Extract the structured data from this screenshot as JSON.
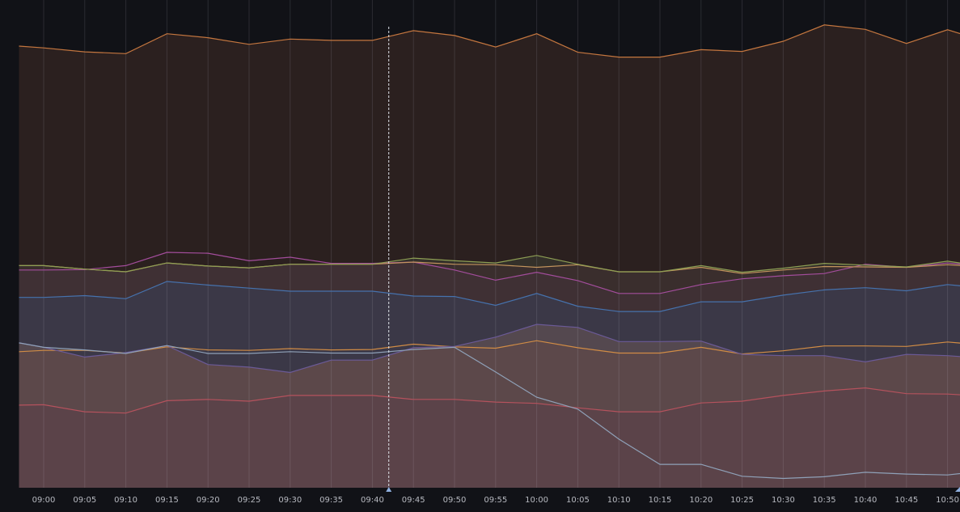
{
  "chart_data": {
    "type": "area",
    "stacked": true,
    "title": "",
    "xlabel": "",
    "ylabel": "",
    "grid": true,
    "legend": "none",
    "background": "#111217",
    "x_ticks": [
      "09:00",
      "09:05",
      "09:10",
      "09:15",
      "09:20",
      "09:25",
      "09:30",
      "09:35",
      "09:40",
      "09:45",
      "09:50",
      "09:55",
      "10:00",
      "10:05",
      "10:10",
      "10:15",
      "10:20",
      "10:25",
      "10:30",
      "10:35",
      "10:40",
      "10:45",
      "10:50"
    ],
    "x_minutes": [
      -3,
      0,
      5,
      10,
      15,
      20,
      25,
      30,
      35,
      40,
      45,
      50,
      55,
      60,
      65,
      70,
      75,
      80,
      85,
      90,
      95,
      100,
      105,
      110,
      113
    ],
    "y_normalized_max": 1.0,
    "crosshair_time": "09:42",
    "series": [
      {
        "color": "#b5525d",
        "fill": "#5b4349",
        "values": [
          0.187,
          0.188,
          0.172,
          0.169,
          0.197,
          0.2,
          0.196,
          0.209,
          0.209,
          0.209,
          0.2,
          0.2,
          0.194,
          0.191,
          0.181,
          0.172,
          0.172,
          0.192,
          0.196,
          0.209,
          0.219,
          0.226,
          0.213,
          0.212,
          0.209
        ]
      },
      {
        "color": "#d18c45",
        "fill": "#5c484a",
        "values": [
          0.308,
          0.311,
          0.311,
          0.305,
          0.319,
          0.312,
          0.311,
          0.315,
          0.312,
          0.313,
          0.325,
          0.319,
          0.316,
          0.333,
          0.317,
          0.305,
          0.305,
          0.318,
          0.303,
          0.31,
          0.321,
          0.321,
          0.32,
          0.33,
          0.325
        ]
      },
      {
        "color": "#6b5a97",
        "fill": "#54484f",
        "values": [
          0.328,
          0.318,
          0.296,
          0.306,
          0.322,
          0.279,
          0.273,
          0.261,
          0.289,
          0.289,
          0.317,
          0.32,
          0.341,
          0.37,
          0.363,
          0.331,
          0.331,
          0.332,
          0.302,
          0.299,
          0.299,
          0.285,
          0.302,
          0.299,
          0.295
        ]
      },
      {
        "color": "#4672ad",
        "fill": "#3b3847",
        "values": [
          0.431,
          0.431,
          0.435,
          0.428,
          0.467,
          0.459,
          0.452,
          0.445,
          0.445,
          0.445,
          0.434,
          0.433,
          0.413,
          0.44,
          0.411,
          0.399,
          0.399,
          0.421,
          0.421,
          0.436,
          0.448,
          0.453,
          0.446,
          0.46,
          0.455
        ]
      },
      {
        "color": "#a34d9c",
        "fill": "#3f3034",
        "values": [
          0.493,
          0.493,
          0.494,
          0.503,
          0.533,
          0.531,
          0.514,
          0.522,
          0.508,
          0.508,
          0.511,
          0.493,
          0.47,
          0.488,
          0.469,
          0.44,
          0.44,
          0.46,
          0.473,
          0.48,
          0.485,
          0.506,
          0.499,
          0.509,
          0.504
        ]
      },
      {
        "color": "#c3945d",
        "fill": "#3a2e2d",
        "values": [
          0.503,
          0.503,
          0.495,
          0.489,
          0.509,
          0.502,
          0.498,
          0.506,
          0.506,
          0.506,
          0.511,
          0.506,
          0.505,
          0.499,
          0.505,
          0.489,
          0.489,
          0.499,
          0.485,
          0.493,
          0.501,
          0.5,
          0.499,
          0.505,
          0.502
        ]
      },
      {
        "color": "#8e9f54",
        "fill": "#34302a",
        "values": [
          0.503,
          0.503,
          0.495,
          0.489,
          0.509,
          0.502,
          0.498,
          0.506,
          0.506,
          0.506,
          0.52,
          0.514,
          0.509,
          0.526,
          0.506,
          0.489,
          0.489,
          0.503,
          0.488,
          0.497,
          0.508,
          0.504,
          0.5,
          0.513,
          0.505
        ]
      },
      {
        "color": "#c4763f",
        "fill": "#2b201f",
        "values": [
          1.0,
          0.996,
          0.987,
          0.983,
          1.028,
          1.019,
          1.004,
          1.016,
          1.013,
          1.013,
          1.035,
          1.024,
          0.998,
          1.028,
          0.986,
          0.975,
          0.975,
          0.992,
          0.988,
          1.011,
          1.048,
          1.038,
          1.006,
          1.037,
          1.02
        ]
      },
      {
        "color": "#8fa1b8",
        "fill": "none",
        "overlay": true,
        "values": [
          0.328,
          0.318,
          0.312,
          0.304,
          0.322,
          0.304,
          0.304,
          0.308,
          0.305,
          0.305,
          0.313,
          0.318,
          0.262,
          0.205,
          0.178,
          0.11,
          0.053,
          0.053,
          0.026,
          0.021,
          0.025,
          0.035,
          0.031,
          0.029,
          0.035
        ]
      }
    ]
  }
}
